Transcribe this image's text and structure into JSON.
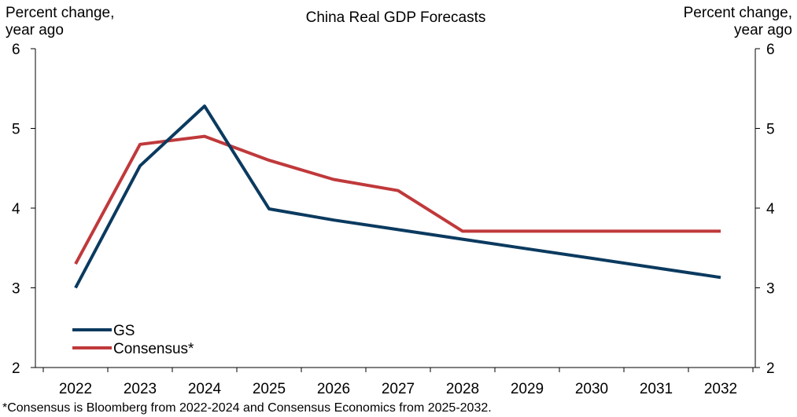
{
  "chart_data": {
    "type": "line",
    "title": "China Real GDP Forecasts",
    "ylabel_left": [
      "Percent change,",
      "year ago"
    ],
    "ylabel_right": [
      "Percent change,",
      "year ago"
    ],
    "ylim": [
      2,
      6
    ],
    "yticks": [
      "2",
      "3",
      "4",
      "5",
      "6"
    ],
    "categories": [
      "2022",
      "2023",
      "2024",
      "2025",
      "2026",
      "2027",
      "2028",
      "2029",
      "2030",
      "2031",
      "2032"
    ],
    "series": [
      {
        "name": "GS",
        "color": "#0b3a5f",
        "values": [
          3.0,
          4.53,
          5.28,
          3.99,
          3.85,
          3.73,
          3.61,
          3.49,
          3.37,
          3.25,
          3.13
        ]
      },
      {
        "name": "Consensus*",
        "color": "#c0393b",
        "values": [
          3.3,
          4.8,
          4.9,
          4.6,
          4.36,
          4.22,
          3.71,
          3.71,
          3.71,
          3.71,
          3.71
        ]
      }
    ],
    "legend_position": "bottom-left",
    "grid": false,
    "footnote": "*Consensus is Bloomberg from 2022-2024 and Consensus Economics from 2025-2032."
  }
}
